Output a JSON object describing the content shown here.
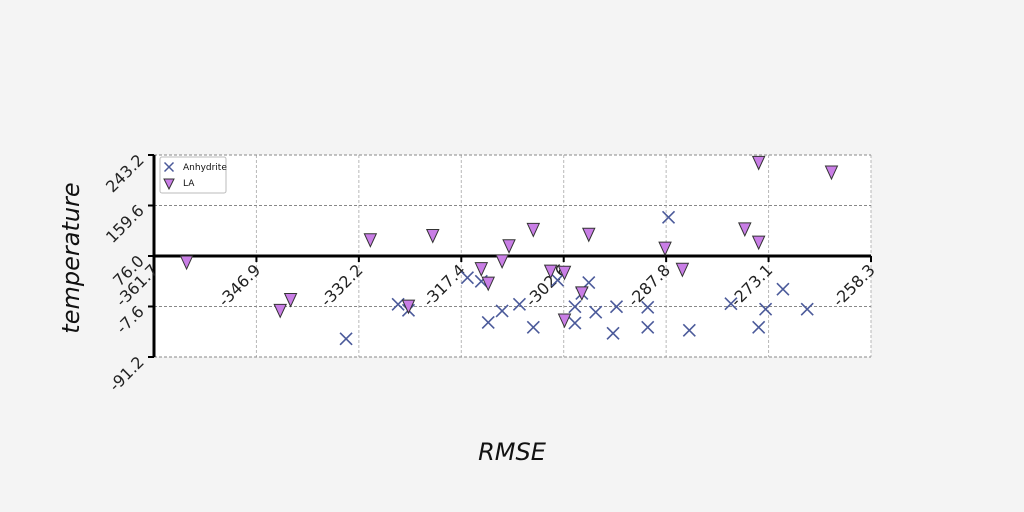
{
  "chart_data": {
    "type": "scatter",
    "title": "",
    "xlabel": "RMSE",
    "ylabel": "temperature",
    "xlim": [
      -361.7,
      -258.3
    ],
    "ylim": [
      -91.2,
      243.2
    ],
    "xticks": [
      "-361.7",
      "-346.9",
      "-332.2",
      "-317.4",
      "-302.6",
      "-287.8",
      "-273.1",
      "-258.3"
    ],
    "yticks": [
      "-91.2",
      "-7.6",
      "76.0",
      "159.6",
      "243.2"
    ],
    "grid": true,
    "legend_position": "top-left",
    "series": [
      {
        "name": "Anhydrite",
        "marker": "x",
        "color": "#4b5a9a",
        "points": [
          {
            "x": -334.0,
            "y": -61.0
          },
          {
            "x": -326.5,
            "y": -4.0
          },
          {
            "x": -325.0,
            "y": -14.0
          },
          {
            "x": -316.5,
            "y": 40.0
          },
          {
            "x": -314.5,
            "y": 34.0
          },
          {
            "x": -313.5,
            "y": -34.0
          },
          {
            "x": -311.5,
            "y": -15.0
          },
          {
            "x": -309.0,
            "y": -4.0
          },
          {
            "x": -307.0,
            "y": -42.0
          },
          {
            "x": -303.5,
            "y": 36.0
          },
          {
            "x": -301.0,
            "y": -35.0
          },
          {
            "x": -301.0,
            "y": -8.0
          },
          {
            "x": -300.0,
            "y": 14.0
          },
          {
            "x": -299.0,
            "y": 32.0
          },
          {
            "x": -298.0,
            "y": -17.0
          },
          {
            "x": -295.5,
            "y": -52.0
          },
          {
            "x": -295.0,
            "y": -8.0
          },
          {
            "x": -290.5,
            "y": -42.0
          },
          {
            "x": -290.5,
            "y": -9.0
          },
          {
            "x": -287.5,
            "y": 140.0
          },
          {
            "x": -284.5,
            "y": -47.0
          },
          {
            "x": -278.5,
            "y": -3.0
          },
          {
            "x": -274.5,
            "y": -42.0
          },
          {
            "x": -273.5,
            "y": -12.0
          },
          {
            "x": -271.0,
            "y": 21.0
          },
          {
            "x": -267.5,
            "y": -12.0
          }
        ]
      },
      {
        "name": "LA",
        "marker": "triangle_down",
        "color": "#c97ee6",
        "points": [
          {
            "x": -357.0,
            "y": 66.0
          },
          {
            "x": -343.5,
            "y": -14.0
          },
          {
            "x": -342.0,
            "y": 4.0
          },
          {
            "x": -330.5,
            "y": 103.0
          },
          {
            "x": -325.0,
            "y": -7.0
          },
          {
            "x": -321.5,
            "y": 110.0
          },
          {
            "x": -314.5,
            "y": 55.0
          },
          {
            "x": -313.5,
            "y": 31.0
          },
          {
            "x": -311.5,
            "y": 68.0
          },
          {
            "x": -310.5,
            "y": 93.0
          },
          {
            "x": -307.0,
            "y": 120.0
          },
          {
            "x": -304.5,
            "y": 51.0
          },
          {
            "x": -302.5,
            "y": 49.0
          },
          {
            "x": -300.0,
            "y": 15.0
          },
          {
            "x": -299.0,
            "y": 112.0
          },
          {
            "x": -302.5,
            "y": -30.0
          },
          {
            "x": -288.0,
            "y": 89.0
          },
          {
            "x": -285.5,
            "y": 54.0
          },
          {
            "x": -276.5,
            "y": 121.0
          },
          {
            "x": -274.5,
            "y": 99.0
          },
          {
            "x": -274.5,
            "y": 231.0
          },
          {
            "x": -264.0,
            "y": 215.0
          }
        ]
      }
    ]
  }
}
